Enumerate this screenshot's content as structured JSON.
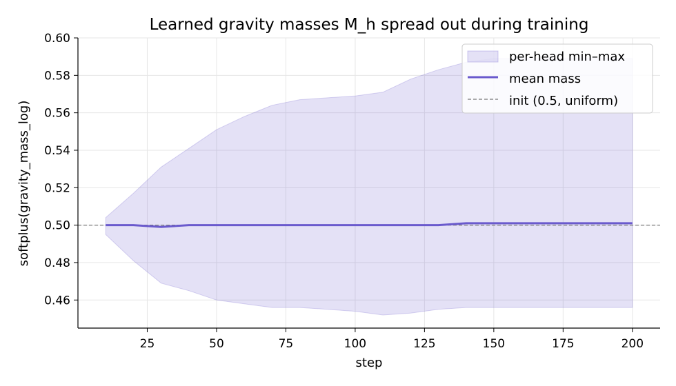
{
  "chart_data": {
    "type": "area",
    "title": "Learned gravity masses M_h spread out during training",
    "xlabel": "step",
    "ylabel": "softplus(gravity_mass_log)",
    "xlim": [
      0,
      210
    ],
    "ylim": [
      0.445,
      0.6
    ],
    "xticks": [
      25,
      50,
      75,
      100,
      125,
      150,
      175,
      200
    ],
    "yticks": [
      0.46,
      0.48,
      0.5,
      0.52,
      0.54,
      0.56,
      0.58,
      0.6
    ],
    "ytick_labels": [
      "0.46",
      "0.48",
      "0.50",
      "0.52",
      "0.54",
      "0.56",
      "0.58",
      "0.60"
    ],
    "grid": true,
    "legend_position": "top-right",
    "series": [
      {
        "name": "per-head min–max",
        "kind": "band",
        "color": "#6a5acd",
        "x": [
          10,
          20,
          30,
          40,
          50,
          60,
          70,
          80,
          90,
          100,
          110,
          120,
          130,
          140,
          150,
          160,
          170,
          180,
          190,
          200
        ],
        "min": [
          0.495,
          0.481,
          0.469,
          0.465,
          0.46,
          0.458,
          0.456,
          0.456,
          0.455,
          0.454,
          0.452,
          0.453,
          0.455,
          0.456,
          0.456,
          0.456,
          0.456,
          0.456,
          0.456,
          0.456
        ],
        "max": [
          0.504,
          0.517,
          0.531,
          0.541,
          0.551,
          0.558,
          0.564,
          0.567,
          0.568,
          0.569,
          0.571,
          0.578,
          0.583,
          0.587,
          0.589,
          0.589,
          0.589,
          0.589,
          0.589,
          0.589
        ]
      },
      {
        "name": "mean mass",
        "kind": "line",
        "color": "#6a5acd",
        "x": [
          10,
          20,
          30,
          40,
          50,
          60,
          70,
          80,
          90,
          100,
          110,
          120,
          130,
          140,
          150,
          160,
          170,
          180,
          190,
          200
        ],
        "y": [
          0.5,
          0.5,
          0.499,
          0.5,
          0.5,
          0.5,
          0.5,
          0.5,
          0.5,
          0.5,
          0.5,
          0.5,
          0.5,
          0.501,
          0.501,
          0.501,
          0.501,
          0.501,
          0.501,
          0.501
        ]
      },
      {
        "name": "init (0.5, uniform)",
        "kind": "hline",
        "color": "#777777",
        "y": 0.5
      }
    ]
  }
}
